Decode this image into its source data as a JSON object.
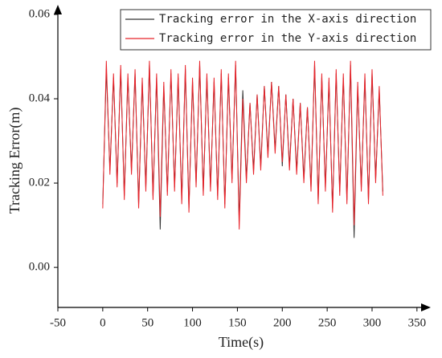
{
  "chart_data": {
    "type": "line",
    "x_label": "Time(s)",
    "y_label": "Tracking Error(m)",
    "x": [
      0,
      4,
      8,
      12,
      16,
      20,
      24,
      28,
      32,
      36,
      40,
      44,
      48,
      52,
      56,
      60,
      64,
      68,
      72,
      76,
      80,
      84,
      88,
      92,
      96,
      100,
      104,
      108,
      112,
      116,
      120,
      124,
      128,
      132,
      136,
      140,
      144,
      148,
      152,
      156,
      160,
      164,
      168,
      172,
      176,
      180,
      184,
      188,
      192,
      196,
      200,
      204,
      208,
      212,
      216,
      220,
      224,
      228,
      232,
      236,
      240,
      244,
      248,
      252,
      256,
      260,
      264,
      268,
      272,
      276,
      280,
      284,
      288,
      292,
      296,
      300,
      304,
      308,
      312
    ],
    "series": [
      {
        "name": "Tracking error in the X-axis direction",
        "color": "#333333",
        "values": [
          0.015,
          0.047,
          0.023,
          0.045,
          0.02,
          0.047,
          0.017,
          0.045,
          0.023,
          0.046,
          0.015,
          0.044,
          0.019,
          0.048,
          0.017,
          0.045,
          0.009,
          0.043,
          0.018,
          0.046,
          0.019,
          0.045,
          0.016,
          0.047,
          0.014,
          0.044,
          0.02,
          0.048,
          0.018,
          0.045,
          0.019,
          0.044,
          0.017,
          0.046,
          0.015,
          0.045,
          0.021,
          0.048,
          0.011,
          0.042,
          0.021,
          0.039,
          0.023,
          0.041,
          0.024,
          0.043,
          0.027,
          0.044,
          0.028,
          0.043,
          0.024,
          0.041,
          0.024,
          0.04,
          0.023,
          0.039,
          0.021,
          0.038,
          0.019,
          0.048,
          0.016,
          0.045,
          0.019,
          0.044,
          0.014,
          0.046,
          0.018,
          0.045,
          0.016,
          0.048,
          0.007,
          0.043,
          0.019,
          0.045,
          0.016,
          0.046,
          0.021,
          0.042,
          0.018
        ]
      },
      {
        "name": "Tracking error in the Y-axis direction",
        "color": "#e8242b",
        "values": [
          0.014,
          0.049,
          0.022,
          0.046,
          0.019,
          0.048,
          0.016,
          0.046,
          0.022,
          0.047,
          0.014,
          0.045,
          0.018,
          0.049,
          0.016,
          0.046,
          0.012,
          0.044,
          0.017,
          0.047,
          0.018,
          0.046,
          0.015,
          0.048,
          0.013,
          0.045,
          0.019,
          0.049,
          0.017,
          0.046,
          0.018,
          0.045,
          0.016,
          0.047,
          0.014,
          0.046,
          0.02,
          0.049,
          0.009,
          0.04,
          0.02,
          0.039,
          0.022,
          0.041,
          0.023,
          0.043,
          0.026,
          0.044,
          0.027,
          0.043,
          0.025,
          0.041,
          0.023,
          0.04,
          0.022,
          0.039,
          0.02,
          0.038,
          0.018,
          0.049,
          0.015,
          0.046,
          0.018,
          0.045,
          0.013,
          0.047,
          0.017,
          0.046,
          0.015,
          0.049,
          0.01,
          0.044,
          0.018,
          0.046,
          0.015,
          0.047,
          0.02,
          0.043,
          0.017
        ]
      }
    ],
    "xlim": [
      -50,
      360
    ],
    "xticks": [
      -50,
      0,
      50,
      100,
      150,
      200,
      250,
      300,
      350
    ],
    "ylim": [
      -0.0095,
      0.06
    ],
    "yticks": [
      {
        "value": 0,
        "label": "0.00"
      },
      0.02,
      0.04,
      0.06
    ],
    "legend": "upper right"
  }
}
